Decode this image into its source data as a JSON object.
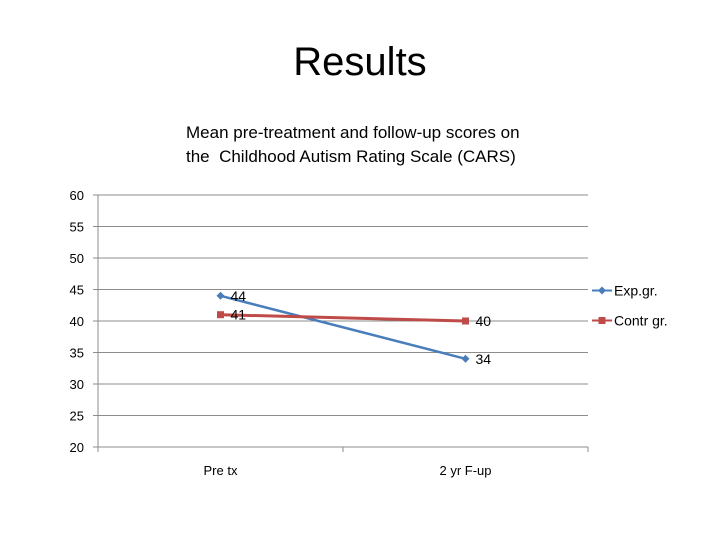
{
  "slide": {
    "title": "Results"
  },
  "chart_data": {
    "type": "line",
    "title_lines": [
      "Mean pre-treatment and follow-up scores on",
      "the  Childhood Autism Rating Scale (CARS)"
    ],
    "categories": [
      "Pre tx",
      "2 yr F-up"
    ],
    "ylim": [
      20,
      60
    ],
    "yticks": [
      20,
      25,
      30,
      35,
      40,
      45,
      50,
      55,
      60
    ],
    "grid": true,
    "legend_position": "right",
    "series": [
      {
        "name": "Exp.gr.",
        "values": [
          44,
          34
        ],
        "color": "#4a7ebb",
        "marker": "diamond"
      },
      {
        "name": "Contr gr.",
        "values": [
          41,
          40
        ],
        "color": "#be4b48",
        "marker": "square"
      }
    ]
  }
}
